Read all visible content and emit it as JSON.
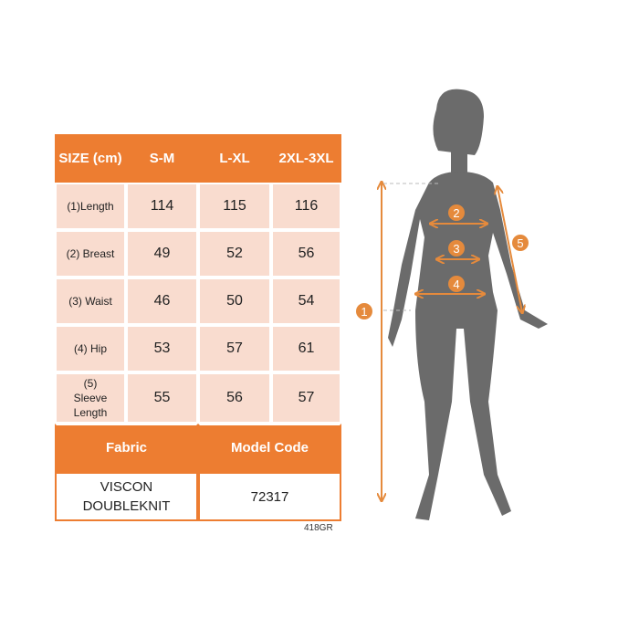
{
  "table": {
    "headers": [
      "SIZE (cm)",
      "S-M",
      "L-XL",
      "2XL-3XL"
    ],
    "rows": [
      {
        "label": "(1)Length",
        "values": [
          "114",
          "115",
          "116"
        ]
      },
      {
        "label": "(2) Breast",
        "values": [
          "49",
          "52",
          "56"
        ]
      },
      {
        "label": "(3) Waist",
        "values": [
          "46",
          "50",
          "54"
        ]
      },
      {
        "label": "(4) Hip",
        "values": [
          "53",
          "57",
          "61"
        ]
      },
      {
        "label": "(5) Sleeve Length",
        "values": [
          "55",
          "56",
          "57"
        ]
      }
    ],
    "fabric_label": "Fabric",
    "model_code_label": "Model Code",
    "fabric_value": "VISCON DOUBLEKNIT",
    "model_code_value": "72317"
  },
  "product_code": "418GR",
  "figure": {
    "markers": [
      "1",
      "2",
      "3",
      "4",
      "5"
    ]
  },
  "colors": {
    "accent": "#ed7d31",
    "cell": "#f9dccf",
    "silhouette": "#6b6b6b"
  }
}
